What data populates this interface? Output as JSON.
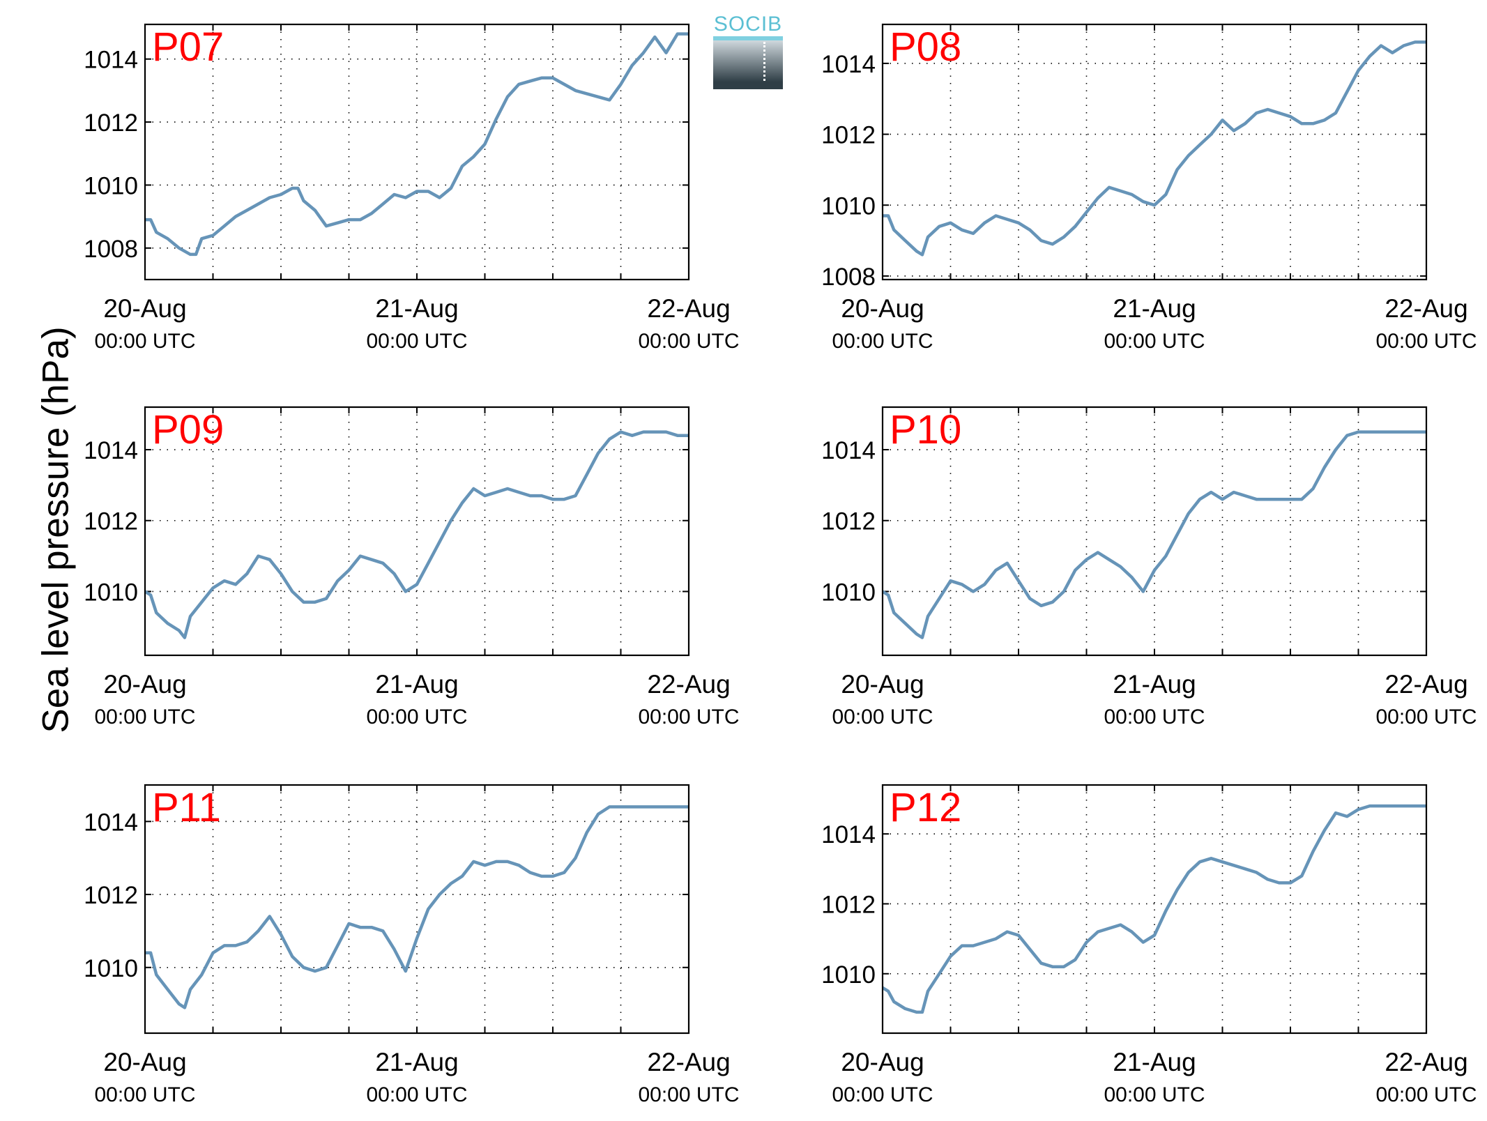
{
  "figure": {
    "ylabel": "Sea level pressure (hPa)",
    "logo_text": "SOCIB",
    "line_color": "#6694b8",
    "label_color": "#ff0000"
  },
  "chart_data": [
    {
      "type": "line",
      "title": "P07",
      "x_tick_labels": [
        [
          "20-Aug",
          "00:00 UTC"
        ],
        [
          "21-Aug",
          "00:00 UTC"
        ],
        [
          "22-Aug",
          "00:00 UTC"
        ]
      ],
      "xlim": [
        0,
        48
      ],
      "ylim": [
        1007.0,
        1015.1
      ],
      "yticks": [
        1008,
        1010,
        1012,
        1014
      ],
      "grid": true,
      "series": [
        {
          "x": [
            0,
            0.5,
            1,
            2,
            3,
            4,
            4.5,
            5,
            6,
            7,
            8,
            9,
            10,
            11,
            12,
            13,
            13.5,
            14,
            15,
            16,
            17,
            18,
            19,
            20,
            21,
            22,
            23,
            24,
            25,
            26,
            27,
            28,
            29,
            30,
            31,
            32,
            33,
            34,
            35,
            36,
            37,
            38,
            39,
            40,
            41,
            42,
            43,
            44,
            45,
            46,
            47,
            48
          ],
          "y": [
            1008.9,
            1008.9,
            1008.5,
            1008.3,
            1008.0,
            1007.8,
            1007.8,
            1008.3,
            1008.4,
            1008.7,
            1009.0,
            1009.2,
            1009.4,
            1009.6,
            1009.7,
            1009.9,
            1009.9,
            1009.5,
            1009.2,
            1008.7,
            1008.8,
            1008.9,
            1008.9,
            1009.1,
            1009.4,
            1009.7,
            1009.6,
            1009.8,
            1009.8,
            1009.6,
            1009.9,
            1010.6,
            1010.9,
            1011.3,
            1012.1,
            1012.8,
            1013.2,
            1013.3,
            1013.4,
            1013.4,
            1013.2,
            1013.0,
            1012.9,
            1012.8,
            1012.7,
            1013.2,
            1013.8,
            1014.2,
            1014.7,
            1014.2,
            1014.8,
            1014.8
          ]
        }
      ]
    },
    {
      "type": "line",
      "title": "P08",
      "x_tick_labels": [
        [
          "20-Aug",
          "00:00 UTC"
        ],
        [
          "21-Aug",
          "00:00 UTC"
        ],
        [
          "22-Aug",
          "00:00 UTC"
        ]
      ],
      "xlim": [
        0,
        48
      ],
      "ylim": [
        1007.9,
        1015.1
      ],
      "yticks": [
        1008,
        1010,
        1012,
        1014
      ],
      "grid": true,
      "series": [
        {
          "x": [
            0,
            0.5,
            1,
            2,
            3,
            3.5,
            4,
            5,
            6,
            7,
            8,
            9,
            10,
            11,
            12,
            13,
            14,
            15,
            16,
            17,
            18,
            19,
            20,
            21,
            22,
            23,
            24,
            25,
            26,
            27,
            28,
            29,
            30,
            31,
            32,
            33,
            34,
            35,
            36,
            37,
            38,
            39,
            40,
            41,
            42,
            43,
            44,
            45,
            46,
            47,
            48
          ],
          "y": [
            1009.7,
            1009.7,
            1009.3,
            1009.0,
            1008.7,
            1008.6,
            1009.1,
            1009.4,
            1009.5,
            1009.3,
            1009.2,
            1009.5,
            1009.7,
            1009.6,
            1009.5,
            1009.3,
            1009.0,
            1008.9,
            1009.1,
            1009.4,
            1009.8,
            1010.2,
            1010.5,
            1010.4,
            1010.3,
            1010.1,
            1010.0,
            1010.3,
            1011.0,
            1011.4,
            1011.7,
            1012.0,
            1012.4,
            1012.1,
            1012.3,
            1012.6,
            1012.7,
            1012.6,
            1012.5,
            1012.3,
            1012.3,
            1012.4,
            1012.6,
            1013.2,
            1013.8,
            1014.2,
            1014.5,
            1014.3,
            1014.5,
            1014.6,
            1014.6
          ]
        }
      ]
    },
    {
      "type": "line",
      "title": "P09",
      "x_tick_labels": [
        [
          "20-Aug",
          "00:00 UTC"
        ],
        [
          "21-Aug",
          "00:00 UTC"
        ],
        [
          "22-Aug",
          "00:00 UTC"
        ]
      ],
      "xlim": [
        0,
        48
      ],
      "ylim": [
        1008.2,
        1015.2
      ],
      "yticks": [
        1010,
        1012,
        1014
      ],
      "grid": true,
      "series": [
        {
          "x": [
            0,
            0.5,
            1,
            2,
            3,
            3.5,
            4,
            5,
            6,
            7,
            8,
            9,
            10,
            11,
            12,
            13,
            14,
            15,
            16,
            17,
            18,
            19,
            20,
            21,
            22,
            23,
            24,
            25,
            26,
            27,
            28,
            29,
            30,
            31,
            32,
            33,
            34,
            35,
            36,
            37,
            38,
            39,
            40,
            41,
            42,
            43,
            44,
            45,
            46,
            47,
            48
          ],
          "y": [
            1010.0,
            1009.9,
            1009.4,
            1009.1,
            1008.9,
            1008.7,
            1009.3,
            1009.7,
            1010.1,
            1010.3,
            1010.2,
            1010.5,
            1011.0,
            1010.9,
            1010.5,
            1010.0,
            1009.7,
            1009.7,
            1009.8,
            1010.3,
            1010.6,
            1011.0,
            1010.9,
            1010.8,
            1010.5,
            1010.0,
            1010.2,
            1010.8,
            1011.4,
            1012.0,
            1012.5,
            1012.9,
            1012.7,
            1012.8,
            1012.9,
            1012.8,
            1012.7,
            1012.7,
            1012.6,
            1012.6,
            1012.7,
            1013.3,
            1013.9,
            1014.3,
            1014.5,
            1014.4,
            1014.5,
            1014.5,
            1014.5,
            1014.4,
            1014.4
          ]
        }
      ]
    },
    {
      "type": "line",
      "title": "P10",
      "x_tick_labels": [
        [
          "20-Aug",
          "00:00 UTC"
        ],
        [
          "21-Aug",
          "00:00 UTC"
        ],
        [
          "22-Aug",
          "00:00 UTC"
        ]
      ],
      "xlim": [
        0,
        48
      ],
      "ylim": [
        1008.2,
        1015.2
      ],
      "yticks": [
        1010,
        1012,
        1014
      ],
      "grid": true,
      "series": [
        {
          "x": [
            0,
            0.5,
            1,
            2,
            3,
            3.5,
            4,
            5,
            6,
            7,
            8,
            9,
            10,
            11,
            12,
            13,
            14,
            15,
            16,
            17,
            18,
            19,
            20,
            21,
            22,
            23,
            24,
            25,
            26,
            27,
            28,
            29,
            30,
            31,
            32,
            33,
            34,
            35,
            36,
            37,
            38,
            39,
            40,
            41,
            42,
            43,
            44,
            45,
            46,
            47,
            48
          ],
          "y": [
            1010.0,
            1009.9,
            1009.4,
            1009.1,
            1008.8,
            1008.7,
            1009.3,
            1009.8,
            1010.3,
            1010.2,
            1010.0,
            1010.2,
            1010.6,
            1010.8,
            1010.3,
            1009.8,
            1009.6,
            1009.7,
            1010.0,
            1010.6,
            1010.9,
            1011.1,
            1010.9,
            1010.7,
            1010.4,
            1010.0,
            1010.6,
            1011.0,
            1011.6,
            1012.2,
            1012.6,
            1012.8,
            1012.6,
            1012.8,
            1012.7,
            1012.6,
            1012.6,
            1012.6,
            1012.6,
            1012.6,
            1012.9,
            1013.5,
            1014.0,
            1014.4,
            1014.5,
            1014.5,
            1014.5,
            1014.5,
            1014.5,
            1014.5,
            1014.5
          ]
        }
      ]
    },
    {
      "type": "line",
      "title": "P11",
      "x_tick_labels": [
        [
          "20-Aug",
          "00:00 UTC"
        ],
        [
          "21-Aug",
          "00:00 UTC"
        ],
        [
          "22-Aug",
          "00:00 UTC"
        ]
      ],
      "xlim": [
        0,
        48
      ],
      "ylim": [
        1008.2,
        1015.0
      ],
      "yticks": [
        1010,
        1012,
        1014
      ],
      "grid": true,
      "series": [
        {
          "x": [
            0,
            0.5,
            1,
            2,
            3,
            3.5,
            4,
            5,
            6,
            7,
            8,
            9,
            10,
            11,
            12,
            13,
            14,
            15,
            16,
            17,
            18,
            19,
            20,
            21,
            22,
            23,
            24,
            25,
            26,
            27,
            28,
            29,
            30,
            31,
            32,
            33,
            34,
            35,
            36,
            37,
            38,
            39,
            40,
            41,
            42,
            43,
            44,
            45,
            46,
            47,
            48
          ],
          "y": [
            1010.4,
            1010.4,
            1009.8,
            1009.4,
            1009.0,
            1008.9,
            1009.4,
            1009.8,
            1010.4,
            1010.6,
            1010.6,
            1010.7,
            1011.0,
            1011.4,
            1010.9,
            1010.3,
            1010.0,
            1009.9,
            1010.0,
            1010.6,
            1011.2,
            1011.1,
            1011.1,
            1011.0,
            1010.5,
            1009.9,
            1010.8,
            1011.6,
            1012.0,
            1012.3,
            1012.5,
            1012.9,
            1012.8,
            1012.9,
            1012.9,
            1012.8,
            1012.6,
            1012.5,
            1012.5,
            1012.6,
            1013.0,
            1013.7,
            1014.2,
            1014.4,
            1014.4,
            1014.4,
            1014.4,
            1014.4,
            1014.4,
            1014.4,
            1014.4
          ]
        }
      ]
    },
    {
      "type": "line",
      "title": "P12",
      "x_tick_labels": [
        [
          "20-Aug",
          "00:00 UTC"
        ],
        [
          "21-Aug",
          "00:00 UTC"
        ],
        [
          "22-Aug",
          "00:00 UTC"
        ]
      ],
      "xlim": [
        0,
        48
      ],
      "ylim": [
        1008.3,
        1015.4
      ],
      "yticks": [
        1010,
        1012,
        1014
      ],
      "grid": true,
      "series": [
        {
          "x": [
            0,
            0.5,
            1,
            2,
            3,
            3.5,
            4,
            5,
            6,
            7,
            8,
            9,
            10,
            11,
            12,
            13,
            14,
            15,
            16,
            17,
            18,
            19,
            20,
            21,
            22,
            23,
            24,
            25,
            26,
            27,
            28,
            29,
            30,
            31,
            32,
            33,
            34,
            35,
            36,
            37,
            38,
            39,
            40,
            41,
            42,
            43,
            44,
            45,
            46,
            47,
            48
          ],
          "y": [
            1009.6,
            1009.5,
            1009.2,
            1009.0,
            1008.9,
            1008.9,
            1009.5,
            1010.0,
            1010.5,
            1010.8,
            1010.8,
            1010.9,
            1011.0,
            1011.2,
            1011.1,
            1010.7,
            1010.3,
            1010.2,
            1010.2,
            1010.4,
            1010.9,
            1011.2,
            1011.3,
            1011.4,
            1011.2,
            1010.9,
            1011.1,
            1011.8,
            1012.4,
            1012.9,
            1013.2,
            1013.3,
            1013.2,
            1013.1,
            1013.0,
            1012.9,
            1012.7,
            1012.6,
            1012.6,
            1012.8,
            1013.5,
            1014.1,
            1014.6,
            1014.5,
            1014.7,
            1014.8,
            1014.8,
            1014.8,
            1014.8,
            1014.8,
            1014.8
          ]
        }
      ]
    }
  ]
}
